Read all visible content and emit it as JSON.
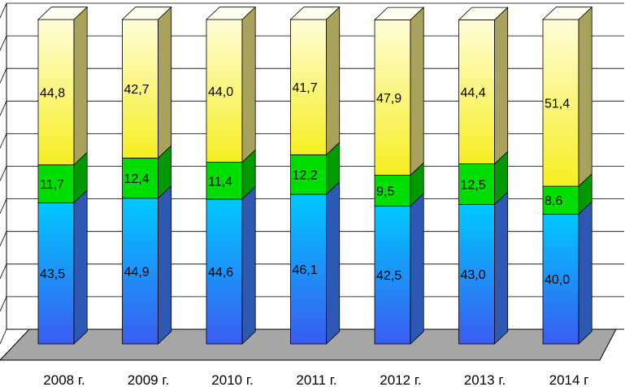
{
  "chart_data": {
    "type": "bar",
    "stacked": true,
    "three_d": true,
    "categories": [
      "2008 г.",
      "2009 г.",
      "2010 г.",
      "2011 г.",
      "2012 г.",
      "2013 г.",
      "2014 г"
    ],
    "series": [
      {
        "values": [
          43.5,
          44.9,
          44.6,
          46.1,
          42.5,
          43.0,
          40.0
        ],
        "labels": [
          "43,5",
          "44,9",
          "44,6",
          "46,1",
          "42,5",
          "43,0",
          "40,0"
        ],
        "colors": {
          "top": "#00c8ff",
          "bottom": "#3a5cf0",
          "side": "#2d58b4"
        }
      },
      {
        "values": [
          11.7,
          12.4,
          11.4,
          12.2,
          9.5,
          12.5,
          8.6
        ],
        "labels": [
          "11,7",
          "12,4",
          "11,4",
          "12,2",
          "9,5",
          "12,5",
          "8,6"
        ],
        "colors": {
          "top": "#00dd00",
          "bottom": "#00dd00",
          "side": "#009900"
        }
      },
      {
        "values": [
          44.8,
          42.7,
          44.0,
          41.7,
          47.9,
          44.4,
          51.4
        ],
        "labels": [
          "44,8",
          "42,7",
          "44,0",
          "41,7",
          "47,9",
          "44,4",
          "51,4"
        ],
        "colors": {
          "top": "#fffdd8",
          "bottom": "#f6ee22",
          "side": "#a8a25c"
        }
      }
    ],
    "ylim": [
      0,
      100
    ],
    "grid": true,
    "legend": "none",
    "colors": {
      "floor": "#a6a6a6",
      "grid": "#000000"
    }
  }
}
